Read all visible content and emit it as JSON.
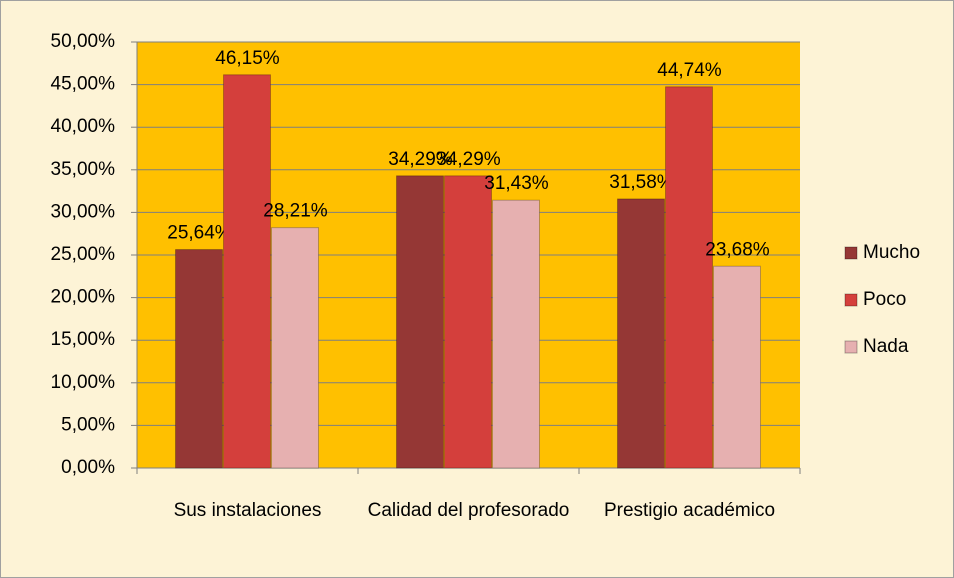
{
  "chart_data": {
    "type": "bar",
    "categories": [
      "Sus instalaciones",
      "Calidad del profesorado",
      "Prestigio académico"
    ],
    "series": [
      {
        "name": "Mucho",
        "color": "#953735",
        "values": [
          25.64,
          34.29,
          31.58
        ],
        "value_labels": [
          "25,64%",
          "34,29%",
          "31,58%"
        ]
      },
      {
        "name": "Poco",
        "color": "#d43f3c",
        "values": [
          46.15,
          34.29,
          44.74
        ],
        "value_labels": [
          "46,15%",
          "34,29%",
          "44,74%"
        ]
      },
      {
        "name": "Nada",
        "color": "#e6b0b0",
        "values": [
          28.21,
          31.43,
          23.68
        ],
        "value_labels": [
          "28,21%",
          "31,43%",
          "23,68%"
        ]
      }
    ],
    "ylim": [
      0,
      50
    ],
    "yticks": [
      {
        "value": 0,
        "label": "0,00%"
      },
      {
        "value": 5,
        "label": "5,00%"
      },
      {
        "value": 10,
        "label": "10,00%"
      },
      {
        "value": 15,
        "label": "15,00%"
      },
      {
        "value": 20,
        "label": "20,00%"
      },
      {
        "value": 25,
        "label": "25,00%"
      },
      {
        "value": 30,
        "label": "30,00%"
      },
      {
        "value": 35,
        "label": "35,00%"
      },
      {
        "value": 40,
        "label": "40,00%"
      },
      {
        "value": 45,
        "label": "45,00%"
      },
      {
        "value": 50,
        "label": "50,00%"
      }
    ],
    "grid": true,
    "legend": "right",
    "plot_background": "#ffc000",
    "background": "#fdf3d6"
  }
}
